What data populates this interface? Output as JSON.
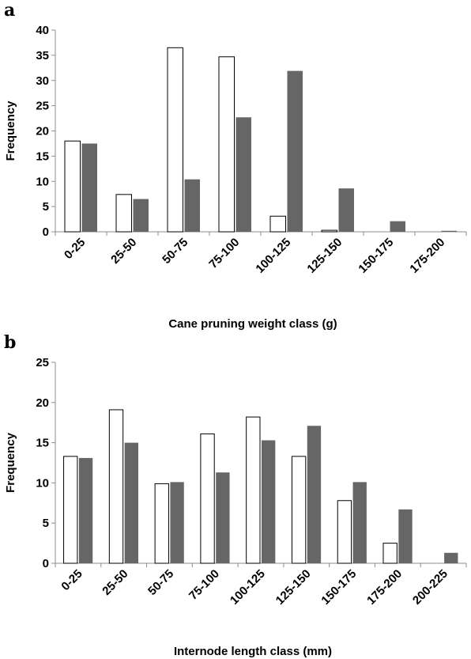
{
  "chart_data": [
    {
      "type": "bar",
      "panel_label": "a",
      "categories": [
        "0-25",
        "25-50",
        "50-75",
        "75-100",
        "100-125",
        "125-150",
        "150-175",
        "175-200"
      ],
      "series": [
        {
          "values": [
            18.0,
            7.4,
            36.5,
            34.7,
            3.1,
            0.3,
            0.0,
            0.0
          ],
          "color": "#ffffff"
        },
        {
          "values": [
            17.5,
            6.5,
            10.4,
            22.7,
            31.9,
            8.6,
            2.1,
            0.2
          ],
          "color": "#666666"
        }
      ],
      "xlabel": "Cane pruning weight class (g)",
      "ylabel": "Frequency",
      "ylim": [
        0,
        40
      ],
      "yticks": [
        0,
        5,
        10,
        15,
        20,
        25,
        30,
        35,
        40
      ],
      "grid": false
    },
    {
      "type": "bar",
      "panel_label": "b",
      "categories": [
        "0-25",
        "25-50",
        "50-75",
        "75-100",
        "100-125",
        "125-150",
        "150-175",
        "175-200",
        "200-225"
      ],
      "series": [
        {
          "values": [
            13.3,
            19.1,
            9.9,
            16.1,
            18.2,
            13.3,
            7.8,
            2.5,
            0.0
          ],
          "color": "#ffffff"
        },
        {
          "values": [
            13.1,
            15.0,
            10.1,
            11.3,
            15.3,
            17.1,
            10.1,
            6.7,
            1.3
          ],
          "color": "#666666"
        }
      ],
      "xlabel": "Internode length class (mm)",
      "ylabel": "Frequency",
      "ylim": [
        0,
        25
      ],
      "yticks": [
        0,
        5,
        10,
        15,
        20,
        25
      ],
      "grid": false
    }
  ]
}
